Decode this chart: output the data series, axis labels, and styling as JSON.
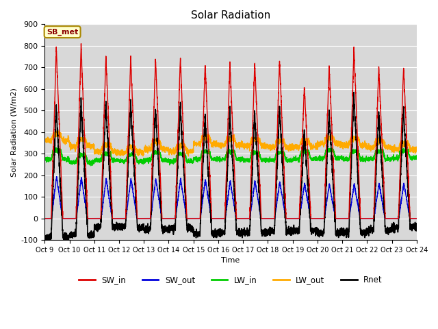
{
  "title": "Solar Radiation",
  "ylabel": "Solar Radiation (W/m2)",
  "xlabel": "Time",
  "ylim": [
    -100,
    900
  ],
  "annotation": "SB_met",
  "bg_color": "#d8d8d8",
  "x_tick_labels": [
    "Oct 9",
    "Oct 10",
    "Oct 11",
    "Oct 12",
    "Oct 13",
    "Oct 14",
    "Oct 15",
    "Oct 16",
    "Oct 17",
    "Oct 18",
    "Oct 19",
    "Oct 20",
    "Oct 21",
    "Oct 22",
    "Oct 23",
    "Oct 24"
  ],
  "series": {
    "SW_in": {
      "color": "#dd0000",
      "lw": 1.0
    },
    "SW_out": {
      "color": "#0000dd",
      "lw": 1.0
    },
    "LW_in": {
      "color": "#00cc00",
      "lw": 1.0
    },
    "LW_out": {
      "color": "#ffaa00",
      "lw": 1.0
    },
    "Rnet": {
      "color": "#000000",
      "lw": 1.2
    }
  },
  "legend_series": [
    "SW_in",
    "SW_out",
    "LW_in",
    "LW_out",
    "Rnet"
  ],
  "legend_colors": [
    "#dd0000",
    "#0000dd",
    "#00cc00",
    "#ffaa00",
    "#000000"
  ],
  "sw_in_peaks": [
    790,
    800,
    755,
    745,
    740,
    745,
    715,
    715,
    720,
    730,
    610,
    710,
    790,
    705,
    705
  ],
  "sw_out_peaks": [
    195,
    190,
    185,
    185,
    185,
    185,
    180,
    175,
    175,
    170,
    165,
    160,
    160,
    165,
    165
  ],
  "lw_out_day": [
    390,
    365,
    340,
    330,
    355,
    340,
    375,
    370,
    365,
    360,
    360,
    375,
    370,
    360,
    350
  ],
  "lw_out_night": [
    360,
    335,
    310,
    305,
    320,
    310,
    345,
    340,
    335,
    330,
    330,
    345,
    340,
    330,
    320
  ],
  "lw_in_day": [
    315,
    295,
    300,
    295,
    305,
    300,
    310,
    310,
    305,
    305,
    310,
    315,
    310,
    310,
    315
  ],
  "lw_in_night": [
    275,
    260,
    270,
    265,
    270,
    265,
    275,
    275,
    270,
    270,
    275,
    280,
    275,
    275,
    280
  ]
}
